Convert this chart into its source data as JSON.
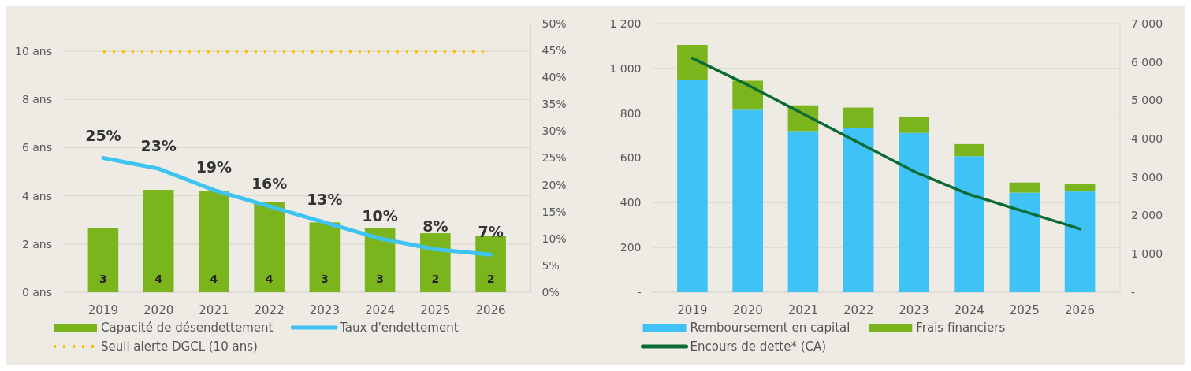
{
  "chart_data": [
    {
      "type": "bar",
      "categories": [
        "2019",
        "2020",
        "2021",
        "2022",
        "2023",
        "2024",
        "2025",
        "2026"
      ],
      "ylim": [
        0,
        11.15
      ],
      "yticks": [
        {
          "value": 0,
          "label": "0 ans"
        },
        {
          "value": 2,
          "label": "2 ans"
        },
        {
          "value": 4,
          "label": "4 ans"
        },
        {
          "value": 6,
          "label": "6 ans"
        },
        {
          "value": 8,
          "label": "8 ans"
        },
        {
          "value": 10,
          "label": "10 ans"
        }
      ],
      "y2lim": [
        0,
        50
      ],
      "y2ticks": [
        {
          "value": 0,
          "label": "0%"
        },
        {
          "value": 5,
          "label": "5%"
        },
        {
          "value": 10,
          "label": "10%"
        },
        {
          "value": 15,
          "label": "15%"
        },
        {
          "value": 20,
          "label": "20%"
        },
        {
          "value": 25,
          "label": "25%"
        },
        {
          "value": 30,
          "label": "30%"
        },
        {
          "value": 35,
          "label": "35%"
        },
        {
          "value": 40,
          "label": "40%"
        },
        {
          "value": 45,
          "label": "45%"
        },
        {
          "value": 50,
          "label": "50%"
        }
      ],
      "series": [
        {
          "name": "Capacité de désendettement",
          "color": "#7ab51d",
          "values": [
            2.65,
            4.25,
            4.2,
            3.75,
            2.9,
            2.65,
            2.45,
            2.35
          ],
          "value_labels": [
            "3",
            "4",
            "4",
            "4",
            "3",
            "3",
            "2",
            "2"
          ]
        },
        {
          "name": "Taux d'endettement",
          "type": "line",
          "axis": "y2",
          "color": "#3fc3f0",
          "values": [
            25,
            23,
            19,
            16,
            13,
            10,
            8,
            7
          ],
          "value_labels": [
            "25%",
            "23%",
            "19%",
            "16%",
            "13%",
            "10%",
            "8%",
            "7%"
          ]
        }
      ],
      "ref_lines": [
        {
          "axis": "y",
          "value": 10,
          "label": "Seuil alerte DGCL (10 ans)",
          "color": "#ffc000",
          "line_style": "dotted"
        }
      ],
      "grid": "y",
      "legend": "bottom"
    },
    {
      "type": "bar",
      "categories": [
        "2019",
        "2020",
        "2021",
        "2022",
        "2023",
        "2024",
        "2025",
        "2026"
      ],
      "stacked": true,
      "ylim": [
        0,
        1200
      ],
      "yticks": [
        {
          "value": 0,
          "label": "-"
        },
        200,
        400,
        600,
        800,
        {
          "value": 1000,
          "label": "1 000"
        },
        {
          "value": 1200,
          "label": "1 200"
        }
      ],
      "y2lim": [
        0,
        7000
      ],
      "y2ticks": [
        {
          "value": 0,
          "label": "-"
        },
        {
          "value": 1000,
          "label": "1 000"
        },
        {
          "value": 2000,
          "label": "2 000"
        },
        {
          "value": 3000,
          "label": "3 000"
        },
        {
          "value": 4000,
          "label": "4 000"
        },
        {
          "value": 5000,
          "label": "5 000"
        },
        {
          "value": 6000,
          "label": "6 000"
        },
        {
          "value": 7000,
          "label": "7 000"
        }
      ],
      "series": [
        {
          "name": "Remboursement en capital",
          "color": "#3fc3f7",
          "values": [
            950,
            815,
            720,
            735,
            712,
            608,
            445,
            450
          ]
        },
        {
          "name": "Frais financiers",
          "color": "#7ab51d",
          "values": [
            155,
            130,
            115,
            90,
            73,
            54,
            45,
            35
          ]
        },
        {
          "name": "Encours de dette* (CA)",
          "type": "line",
          "axis": "y2",
          "color": "#0b6b35",
          "values": [
            6100,
            5400,
            4650,
            3900,
            3150,
            2550,
            2100,
            1650
          ]
        }
      ],
      "grid": "y",
      "legend": "bottom"
    }
  ]
}
